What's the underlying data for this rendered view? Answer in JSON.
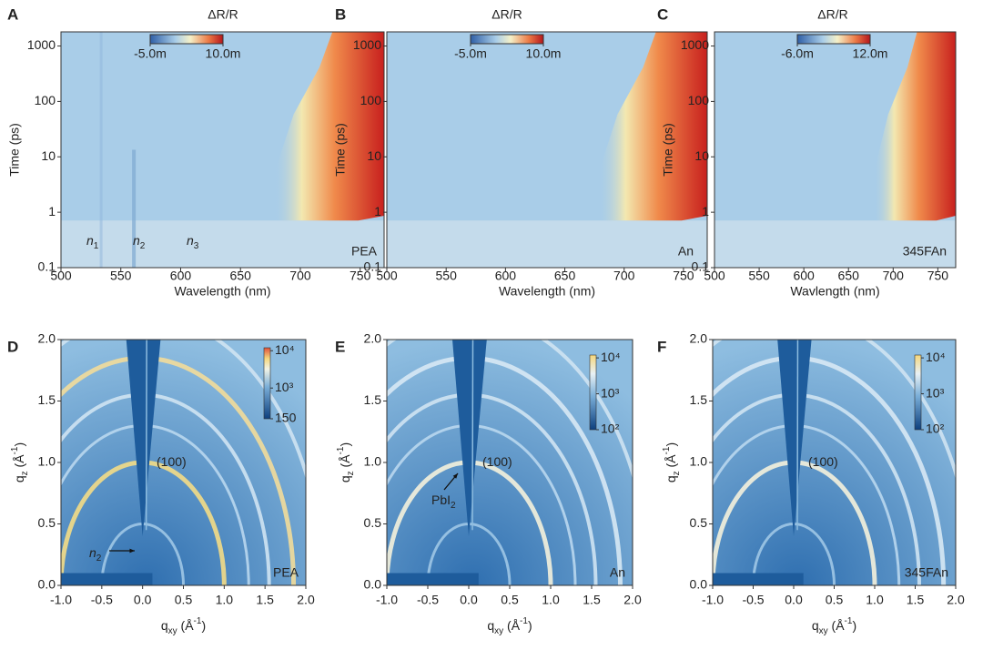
{
  "chart_data": [
    {
      "type": "heatmap",
      "panel": "A",
      "title": "ΔR/R",
      "xlabel": "Wavelength (nm)",
      "ylabel": "Time (ps)",
      "xlim": [
        500,
        770
      ],
      "xticks": [
        500,
        550,
        600,
        650,
        700,
        750
      ],
      "ylim": [
        0.1,
        1800
      ],
      "yscale": "log",
      "yticks": [
        0.1,
        1,
        10,
        100,
        1000
      ],
      "clim": [
        -0.005,
        0.01
      ],
      "cticks": [
        {
          "value": -0.005,
          "label": "-5.0m"
        },
        {
          "value": 0.01,
          "label": "10.0m"
        }
      ],
      "label": "PEA",
      "annotations": [
        [
          "n",
          "1"
        ],
        [
          "n",
          "2"
        ],
        [
          "n",
          "3"
        ]
      ]
    },
    {
      "type": "heatmap",
      "panel": "B",
      "title": "ΔR/R",
      "xlabel": "Wavelength (nm)",
      "ylabel": "Time (ps)",
      "xlim": [
        500,
        770
      ],
      "xticks": [
        500,
        550,
        600,
        650,
        700,
        750
      ],
      "ylim": [
        0.1,
        1800
      ],
      "yscale": "log",
      "yticks": [
        0.1,
        1,
        10,
        100,
        1000
      ],
      "clim": [
        -0.005,
        0.01
      ],
      "cticks": [
        {
          "value": -0.005,
          "label": "-5.0m"
        },
        {
          "value": 0.01,
          "label": "10.0m"
        }
      ],
      "label": "An",
      "annotations": []
    },
    {
      "type": "heatmap",
      "panel": "C",
      "title": "ΔR/R",
      "xlabel": "Wavlength (nm)",
      "ylabel": "Time (ps)",
      "xlim": [
        500,
        770
      ],
      "xticks": [
        500,
        550,
        600,
        650,
        700,
        750
      ],
      "ylim": [
        0.1,
        1800
      ],
      "yscale": "log",
      "yticks": [
        0.1,
        1,
        10,
        100,
        1000
      ],
      "clim": [
        -0.006,
        0.012
      ],
      "cticks": [
        {
          "value": -0.006,
          "label": "-6.0m"
        },
        {
          "value": 0.012,
          "label": "12.0m"
        }
      ],
      "label": "345FAn",
      "annotations": []
    },
    {
      "type": "giwaxs",
      "panel": "D",
      "xlabel": [
        "q",
        "xy",
        " (Å",
        "-1",
        ")"
      ],
      "ylabel": [
        "q",
        "z",
        " (Å",
        "-1",
        ")"
      ],
      "xlim": [
        -1,
        2
      ],
      "xticks": [
        {
          "value": -1,
          "label": "-1.0"
        },
        {
          "value": -0.5,
          "label": "-0.5"
        },
        {
          "value": 0,
          "label": "0.0"
        },
        {
          "value": 0.5,
          "label": "0.5"
        },
        {
          "value": 1,
          "label": "1.0"
        },
        {
          "value": 1.5,
          "label": "1.5"
        },
        {
          "value": 2,
          "label": "2.0"
        }
      ],
      "ylim": [
        0,
        2
      ],
      "yticks": [
        {
          "value": 0,
          "label": "0.0"
        },
        {
          "value": 0.5,
          "label": "0.5"
        },
        {
          "value": 1,
          "label": "1.0"
        },
        {
          "value": 1.5,
          "label": "1.5"
        },
        {
          "value": 2,
          "label": "2.0"
        }
      ],
      "clim": [
        150,
        12000
      ],
      "cscale": "log",
      "cticks": [
        {
          "value": 10000,
          "label": "10⁴"
        },
        {
          "value": 1000,
          "label": "10³"
        },
        150
      ],
      "label": "PEA",
      "annotations": [
        [
          "(100)"
        ],
        [
          "n",
          "2"
        ]
      ]
    },
    {
      "type": "giwaxs",
      "panel": "E",
      "xlabel": [
        "q",
        "xy",
        " (Å",
        "-1",
        ")"
      ],
      "ylabel": [
        "q",
        "z",
        " (Å",
        "-1",
        ")"
      ],
      "xlim": [
        -1,
        2
      ],
      "xticks": [
        {
          "value": -1,
          "label": "-1.0"
        },
        {
          "value": -0.5,
          "label": "-0.5"
        },
        {
          "value": 0,
          "label": "0.0"
        },
        {
          "value": 0.5,
          "label": "0.5"
        },
        {
          "value": 1,
          "label": "1.0"
        },
        {
          "value": 1.5,
          "label": "1.5"
        },
        {
          "value": 2,
          "label": "2.0"
        }
      ],
      "ylim": [
        0,
        2
      ],
      "yticks": [
        {
          "value": 0,
          "label": "0.0"
        },
        {
          "value": 0.5,
          "label": "0.5"
        },
        {
          "value": 1,
          "label": "1.0"
        },
        {
          "value": 1.5,
          "label": "1.5"
        },
        {
          "value": 2,
          "label": "2.0"
        }
      ],
      "clim": [
        100,
        12000
      ],
      "cscale": "log",
      "cticks": [
        {
          "value": 10000,
          "label": "10⁴"
        },
        {
          "value": 1000,
          "label": "10³"
        },
        {
          "value": 100,
          "label": "10²"
        }
      ],
      "label": "An",
      "annotations": [
        [
          "(100)"
        ],
        [
          "PbI",
          "2"
        ]
      ]
    },
    {
      "type": "giwaxs",
      "panel": "F",
      "xlabel": [
        "q",
        "xy",
        " (Å",
        "-1",
        ")"
      ],
      "ylabel": [
        "q",
        "z",
        " (Å",
        "-1",
        ")"
      ],
      "xlim": [
        -1,
        2
      ],
      "xticks": [
        {
          "value": -1,
          "label": "-1.0"
        },
        {
          "value": -0.5,
          "label": "-0.5"
        },
        {
          "value": 0,
          "label": "0.0"
        },
        {
          "value": 0.5,
          "label": "0.5"
        },
        {
          "value": 1,
          "label": "1.0"
        },
        {
          "value": 1.5,
          "label": "1.5"
        },
        {
          "value": 2,
          "label": "2.0"
        }
      ],
      "ylim": [
        0,
        2
      ],
      "yticks": [
        {
          "value": 0,
          "label": "0.0"
        },
        {
          "value": 0.5,
          "label": "0.5"
        },
        {
          "value": 1,
          "label": "1.0"
        },
        {
          "value": 1.5,
          "label": "1.5"
        },
        {
          "value": 2,
          "label": "2.0"
        }
      ],
      "clim": [
        100,
        12000
      ],
      "cscale": "log",
      "cticks": [
        {
          "value": 10000,
          "label": "10⁴"
        },
        {
          "value": 1000,
          "label": "10³"
        },
        {
          "value": 100,
          "label": "10²"
        }
      ],
      "label": "345FAn",
      "annotations": [
        [
          "(100)"
        ]
      ]
    }
  ]
}
